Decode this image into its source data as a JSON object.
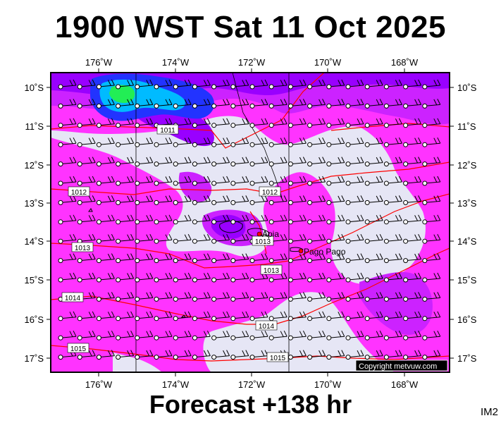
{
  "header": {
    "title": "1900 WST Sat 11 Oct 2025"
  },
  "footer": {
    "forecast": "Forecast +138 hr",
    "model": "IM2"
  },
  "map": {
    "lon_ticks": [
      "176˚W",
      "174˚W",
      "172˚W",
      "170˚W",
      "168˚W"
    ],
    "lat_ticks": [
      "10˚S",
      "11˚S",
      "12˚S",
      "13˚S",
      "14˚S",
      "15˚S",
      "16˚S",
      "17˚S"
    ],
    "isobar_labels": [
      "1011",
      "1012",
      "1012",
      "1013",
      "1013",
      "1013",
      "1014",
      "1014",
      "1015",
      "1015"
    ],
    "places": [
      "Apia",
      "Pago Pago"
    ],
    "copyright": "Copyright metvuw.com",
    "colors": {
      "background": "#e6e6f5",
      "light_magenta": "#ff33ff",
      "magenta": "#ff00ff",
      "violet": "#cc22ff",
      "purple": "#9900ff",
      "blue": "#2233ff",
      "cyan": "#00bbff",
      "green": "#22ee55",
      "isobar": "#ff0000"
    }
  }
}
